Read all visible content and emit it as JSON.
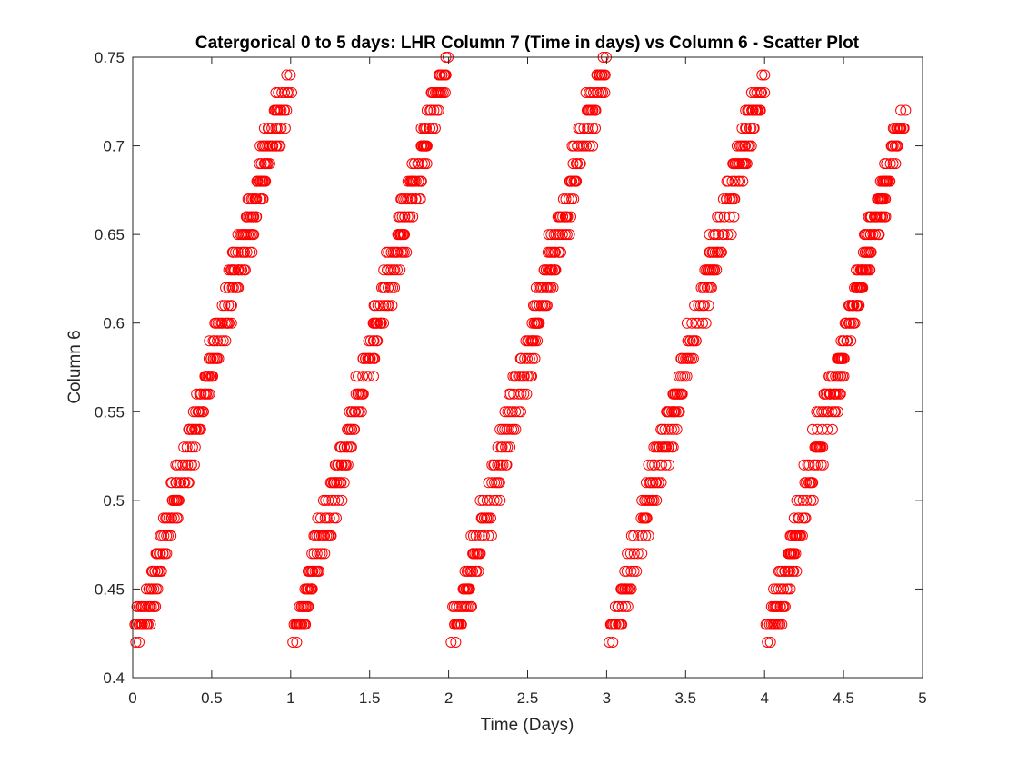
{
  "chart_data": {
    "type": "scatter",
    "title": "Catergorical 0 to 5 days: LHR Column 7 (Time in days) vs Column 6 - Scatter Plot",
    "xlabel": "Time (Days)",
    "ylabel": "Column 6",
    "xlim": [
      0,
      5
    ],
    "ylim": [
      0.4,
      0.75
    ],
    "xticks": [
      "0",
      "0.5",
      "1",
      "1.5",
      "2",
      "2.5",
      "3",
      "3.5",
      "4",
      "4.5",
      "5"
    ],
    "yticks": [
      "0.4",
      "0.45",
      "0.5",
      "0.55",
      "0.6",
      "0.65",
      "0.7",
      "0.75"
    ],
    "grid": false,
    "legend": "none",
    "marker": "open-circle",
    "marker_color": "#ff0000",
    "series": [
      {
        "cycles": [
          {
            "day_start": 0.0,
            "day_end": 0.99,
            "y_start": 0.42,
            "y_end": 0.74
          },
          {
            "day_start": 1.0,
            "day_end": 1.99,
            "y_start": 0.42,
            "y_end": 0.75
          },
          {
            "day_start": 2.0,
            "day_end": 2.99,
            "y_start": 0.42,
            "y_end": 0.75
          },
          {
            "day_start": 3.0,
            "day_end": 3.99,
            "y_start": 0.42,
            "y_end": 0.74
          },
          {
            "day_start": 4.0,
            "day_end": 4.88,
            "y_start": 0.42,
            "y_end": 0.72
          }
        ],
        "y_step": 0.01
      }
    ]
  }
}
